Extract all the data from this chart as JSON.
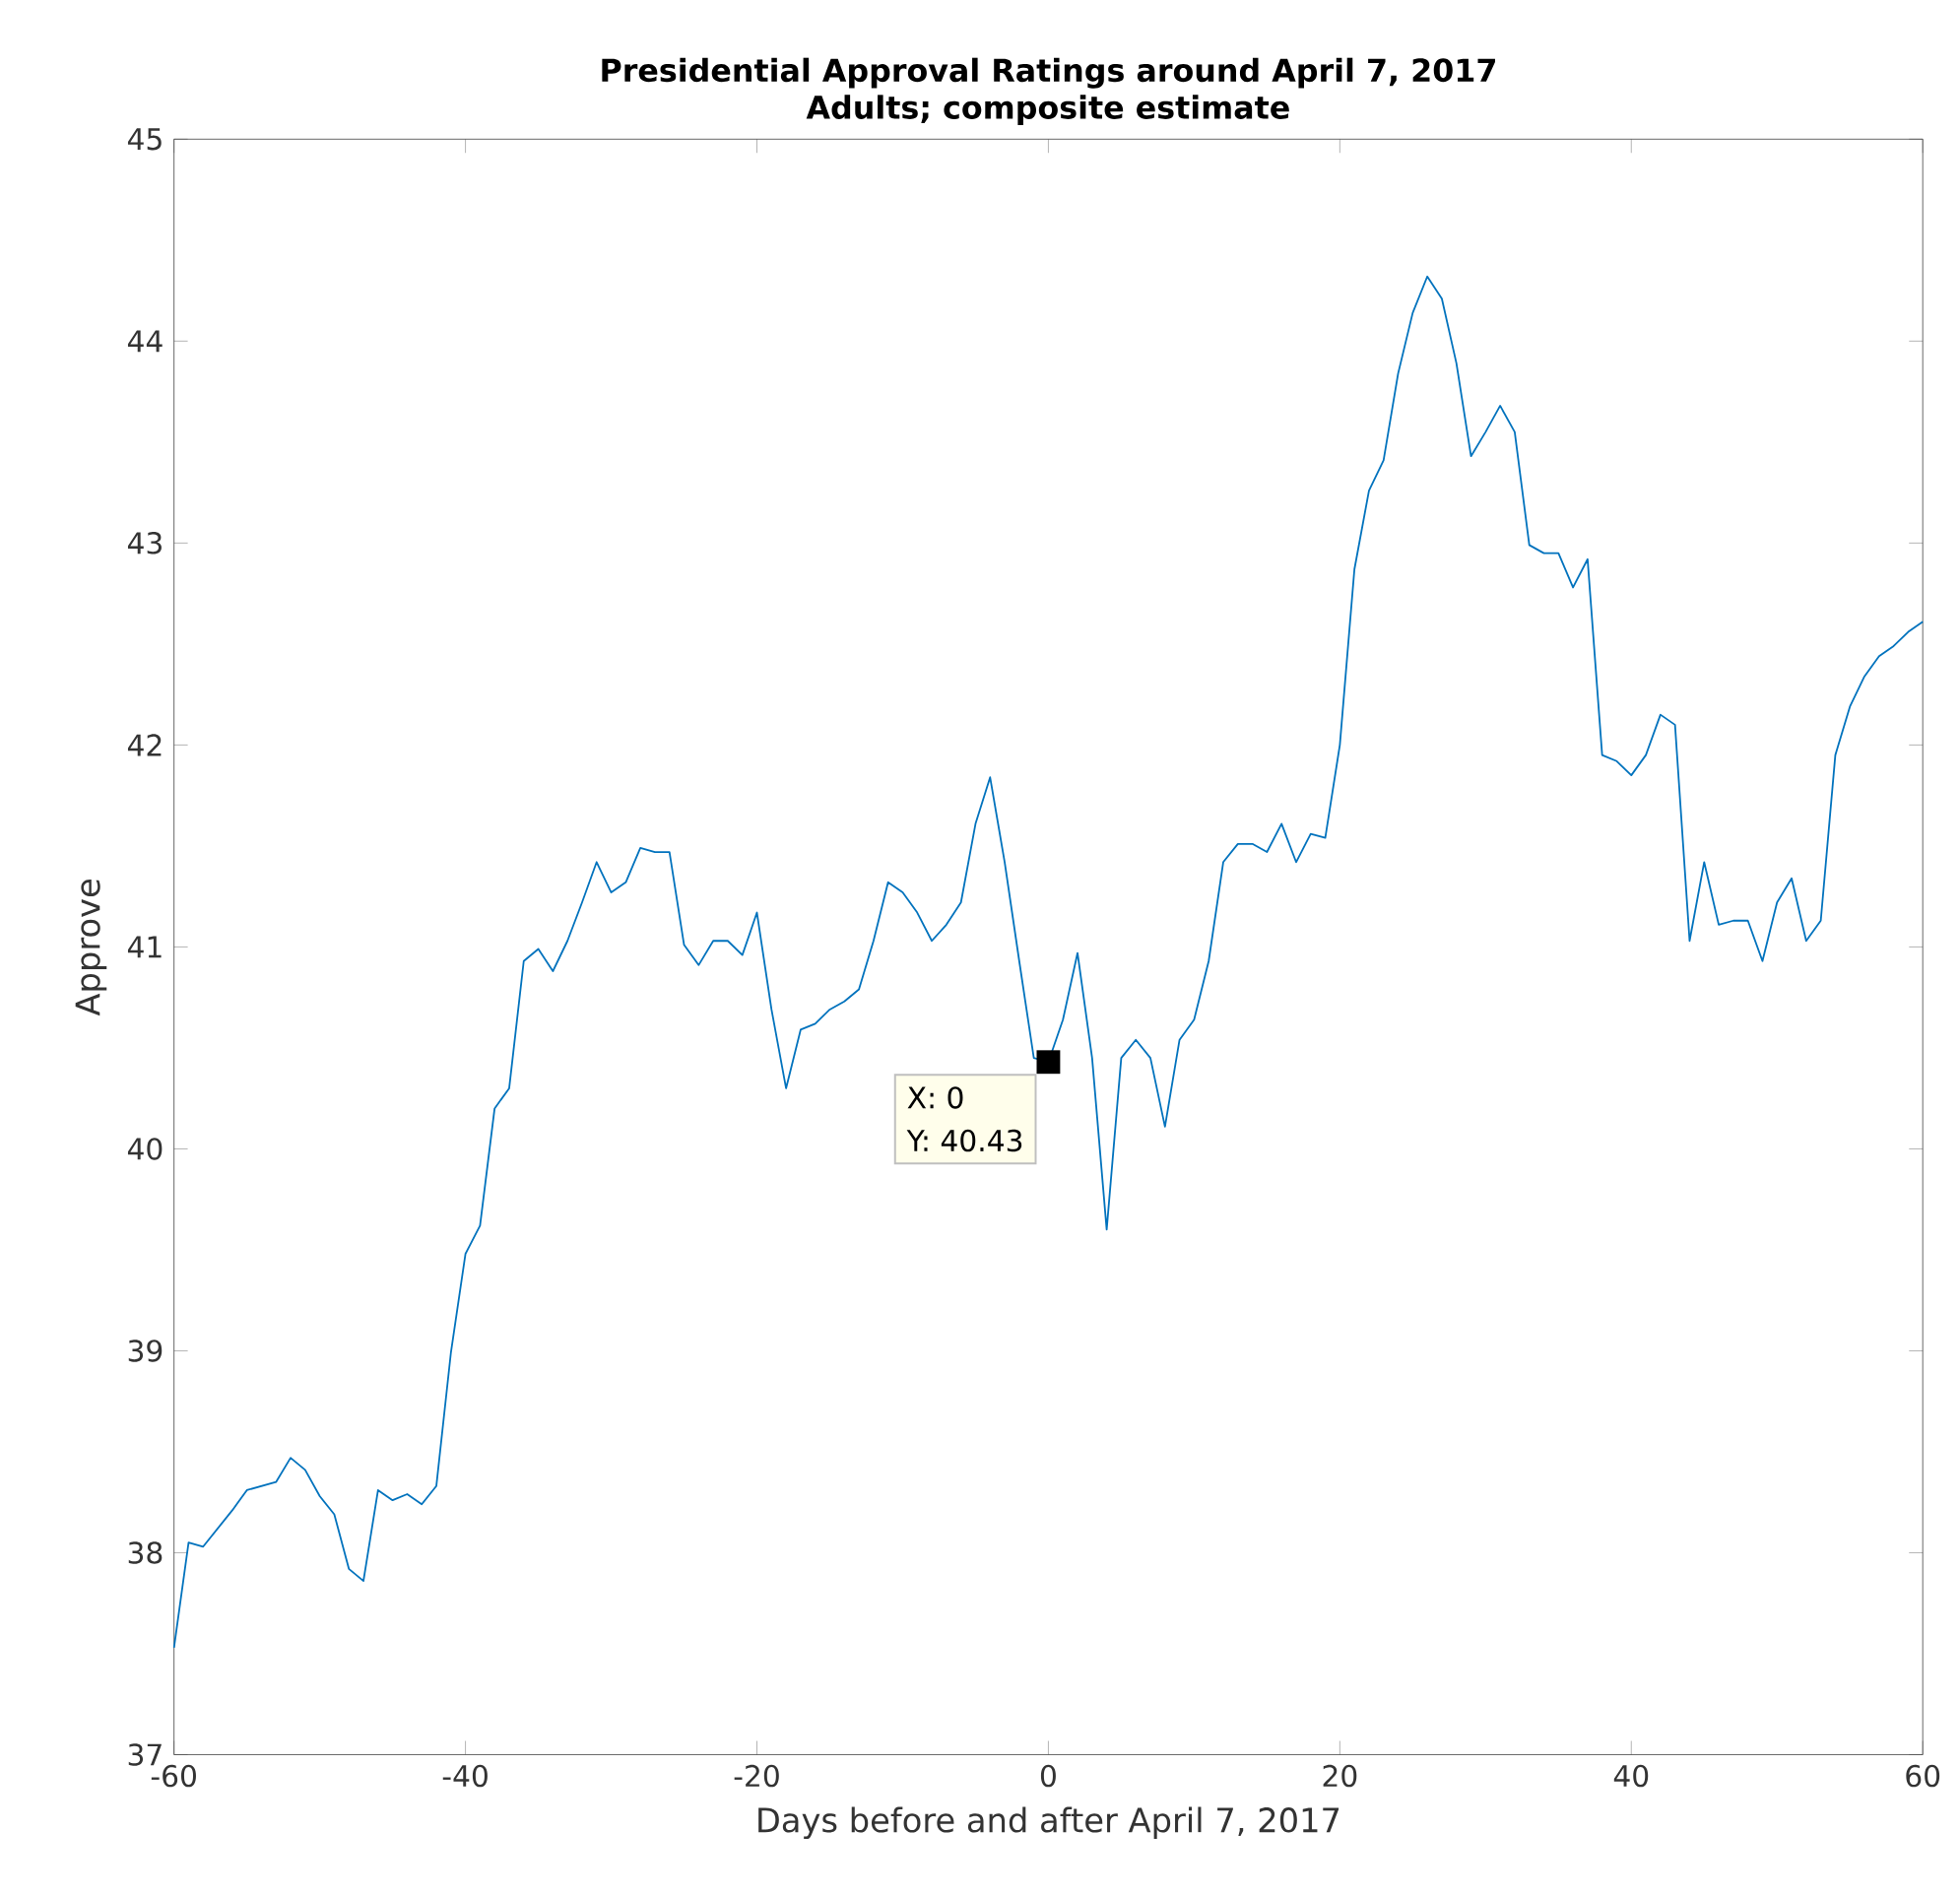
{
  "chart_data": {
    "type": "line",
    "title": "Presidential Approval Ratings around April 7, 2017",
    "subtitle": "Adults; composite estimate",
    "xlabel": "Days before and after April 7, 2017",
    "ylabel": "Approve",
    "xlim": [
      -60,
      60
    ],
    "ylim": [
      37,
      45
    ],
    "xticks": [
      -60,
      -40,
      -20,
      0,
      20,
      40,
      60
    ],
    "yticks": [
      37,
      38,
      39,
      40,
      41,
      42,
      43,
      44,
      45
    ],
    "grid": false,
    "marker": "none",
    "line_style": "solid",
    "series": [
      {
        "color": "#0072bd",
        "x": [
          -60,
          -59,
          -58,
          -56,
          -55,
          -53,
          -52,
          -51,
          -50,
          -49,
          -48,
          -47,
          -46,
          -45,
          -44,
          -43,
          -42,
          -41,
          -40,
          -39,
          -38,
          -37,
          -36,
          -35,
          -34,
          -33,
          -32,
          -31,
          -30,
          -29,
          -28,
          -27,
          -26,
          -25,
          -24,
          -23,
          -22,
          -21,
          -20,
          -19,
          -18,
          -17,
          -16,
          -15,
          -14,
          -13,
          -12,
          -11,
          -10,
          -9,
          -8,
          -7,
          -6,
          -5,
          -4,
          -3,
          -2,
          -1,
          0,
          1,
          2,
          3,
          4,
          5,
          6,
          7,
          8,
          9,
          10,
          11,
          12,
          13,
          14,
          15,
          16,
          17,
          18,
          19,
          20,
          21,
          22,
          23,
          24,
          25,
          26,
          27,
          28,
          29,
          30,
          31,
          32,
          33,
          34,
          35,
          36,
          37,
          38,
          39,
          40,
          41,
          42,
          43,
          44,
          45,
          46,
          47,
          48,
          49,
          50,
          51,
          52,
          53,
          54,
          55,
          56,
          57,
          58,
          59,
          60
        ],
        "values": [
          37.53,
          38.05,
          38.03,
          38.21,
          38.31,
          38.35,
          38.47,
          38.41,
          38.28,
          38.19,
          37.92,
          37.86,
          38.31,
          38.26,
          38.29,
          38.24,
          38.33,
          38.99,
          39.48,
          39.62,
          40.2,
          40.3,
          40.93,
          40.99,
          40.88,
          41.03,
          41.22,
          41.42,
          41.27,
          41.32,
          41.49,
          41.47,
          41.47,
          41.01,
          40.91,
          41.03,
          41.03,
          40.96,
          41.17,
          40.69,
          40.3,
          40.59,
          40.62,
          40.69,
          40.73,
          40.79,
          41.03,
          41.32,
          41.27,
          41.17,
          41.03,
          41.11,
          41.22,
          41.61,
          41.84,
          41.42,
          40.93,
          40.45,
          40.43,
          40.64,
          40.97,
          40.45,
          39.6,
          40.45,
          40.54,
          40.45,
          40.11,
          40.54,
          40.64,
          40.93,
          41.42,
          41.51,
          41.51,
          41.47,
          41.61,
          41.42,
          41.56,
          41.54,
          42.0,
          42.87,
          43.26,
          43.41,
          43.84,
          44.14,
          44.32,
          44.21,
          43.89,
          43.43,
          43.55,
          43.68,
          43.55,
          42.99,
          42.95,
          42.95,
          42.78,
          42.92,
          41.95,
          41.92,
          41.85,
          41.95,
          42.15,
          42.1,
          41.03,
          41.42,
          41.11,
          41.13,
          41.13,
          40.93,
          41.22,
          41.34,
          41.03,
          41.13,
          41.95,
          42.19,
          42.34,
          42.44,
          42.49,
          42.56,
          42.61
        ]
      }
    ],
    "annotations": [
      "X: 0",
      {
        "text": "Y: 40.43",
        "x": 0,
        "y": 40.43
      }
    ]
  }
}
